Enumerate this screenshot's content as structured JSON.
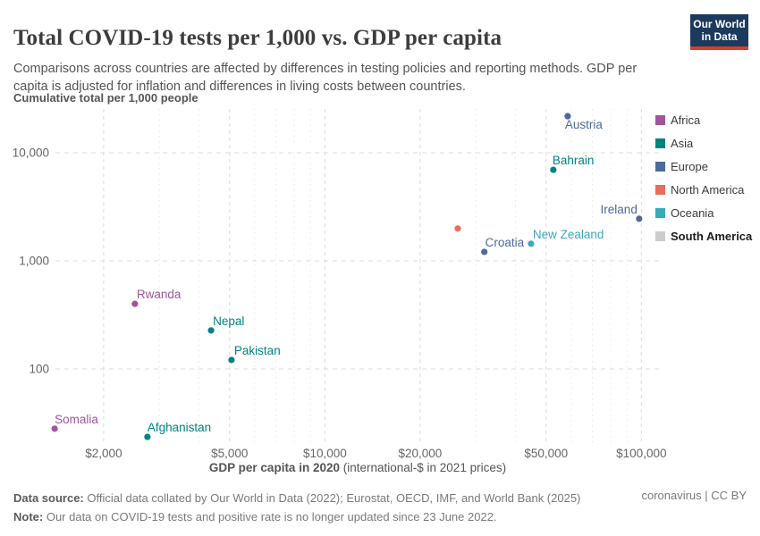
{
  "header": {
    "title": "Total COVID-19 tests per 1,000 vs. GDP per capita",
    "subtitle": "Comparisons across countries are affected by differences in testing policies and reporting methods. GDP per capita is adjusted for inflation and differences in living costs between countries.",
    "logo": {
      "line1": "Our World",
      "line2": "in Data"
    }
  },
  "footer": {
    "source_label": "Data source:",
    "source_text": " Official data collated by Our World in Data (2022); Eurostat, OECD, IMF, and World Bank (2025)",
    "note_label": "Note:",
    "note_text": " Our data on COVID-19 tests and positive rate is no longer updated since 23 June 2022.",
    "links": "coronavirus | CC BY"
  },
  "chart_data": {
    "type": "scatter",
    "title": "Total COVID-19 tests per 1,000 vs. GDP per capita",
    "x_scale": "log",
    "y_scale": "log",
    "ylabel": "Cumulative total per 1,000 people",
    "xlabel_bold": "GDP per capita in 2020",
    "xlabel_rest": " (international-$ in 2021 prices)",
    "xlim": [
      1390,
      115900
    ],
    "ylim": [
      20.2,
      25400
    ],
    "grid": true,
    "legend_position": "right",
    "x_ticks": [
      2000,
      5000,
      10000,
      20000,
      50000,
      100000
    ],
    "x_tick_labels": [
      "$2,000",
      "$5,000",
      "$10,000",
      "$20,000",
      "$50,000",
      "$100,000"
    ],
    "x_minor_ticks": [
      3000,
      4000,
      6000,
      7000,
      8000,
      9000,
      30000,
      40000,
      60000,
      70000,
      80000,
      90000
    ],
    "y_ticks": [
      100,
      1000,
      10000
    ],
    "y_tick_labels": [
      "100",
      "1,000",
      "10,000"
    ],
    "region_colors": {
      "Africa": "#a2559c",
      "Asia": "#00847e",
      "Europe": "#4c6a9c",
      "North America": "#e56e5a",
      "Oceania": "#3ba8bd",
      "South America": "#cccccc"
    },
    "legend": [
      {
        "label": "Africa",
        "color": "#a2559c",
        "bold": false
      },
      {
        "label": "Asia",
        "color": "#00847e",
        "bold": false
      },
      {
        "label": "Europe",
        "color": "#4c6a9c",
        "bold": false
      },
      {
        "label": "North America",
        "color": "#e56e5a",
        "bold": false
      },
      {
        "label": "Oceania",
        "color": "#3ba8bd",
        "bold": false
      },
      {
        "label": "South America",
        "color": "#cccccc",
        "bold": true
      }
    ],
    "points": [
      {
        "label": "Austria",
        "region": "Europe",
        "gdp_per_capita": 58500,
        "tests_per_1000": 21800,
        "label_side": "below",
        "label_dx": -3
      },
      {
        "label": "Bahrain",
        "region": "Asia",
        "gdp_per_capita": 52700,
        "tests_per_1000": 6950,
        "label_side": "above",
        "label_dx": -1
      },
      {
        "label": "Ireland",
        "region": "Europe",
        "gdp_per_capita": 98400,
        "tests_per_1000": 2450,
        "label_side": "above-left",
        "label_dx": -2
      },
      {
        "label": "",
        "region": "North America",
        "gdp_per_capita": 26300,
        "tests_per_1000": 1990,
        "label_side": "above",
        "label_dx": 0
      },
      {
        "label": "New Zealand",
        "region": "Oceania",
        "gdp_per_capita": 44800,
        "tests_per_1000": 1440,
        "label_side": "above",
        "label_dx": 2
      },
      {
        "label": "Croatia",
        "region": "Europe",
        "gdp_per_capita": 31900,
        "tests_per_1000": 1210,
        "label_side": "above",
        "label_dx": 1
      },
      {
        "label": "Rwanda",
        "region": "Africa",
        "gdp_per_capita": 2510,
        "tests_per_1000": 400,
        "label_side": "above",
        "label_dx": 2
      },
      {
        "label": "Nepal",
        "region": "Asia",
        "gdp_per_capita": 4370,
        "tests_per_1000": 227,
        "label_side": "above",
        "label_dx": 2
      },
      {
        "label": "Pakistan",
        "region": "Asia",
        "gdp_per_capita": 5070,
        "tests_per_1000": 121,
        "label_side": "above",
        "label_dx": 3
      },
      {
        "label": "Somalia",
        "region": "Africa",
        "gdp_per_capita": 1400,
        "tests_per_1000": 28,
        "label_side": "above",
        "label_dx": 0
      },
      {
        "label": "Afghanistan",
        "region": "Asia",
        "gdp_per_capita": 2750,
        "tests_per_1000": 23.5,
        "label_side": "above",
        "label_dx": 0
      }
    ]
  }
}
